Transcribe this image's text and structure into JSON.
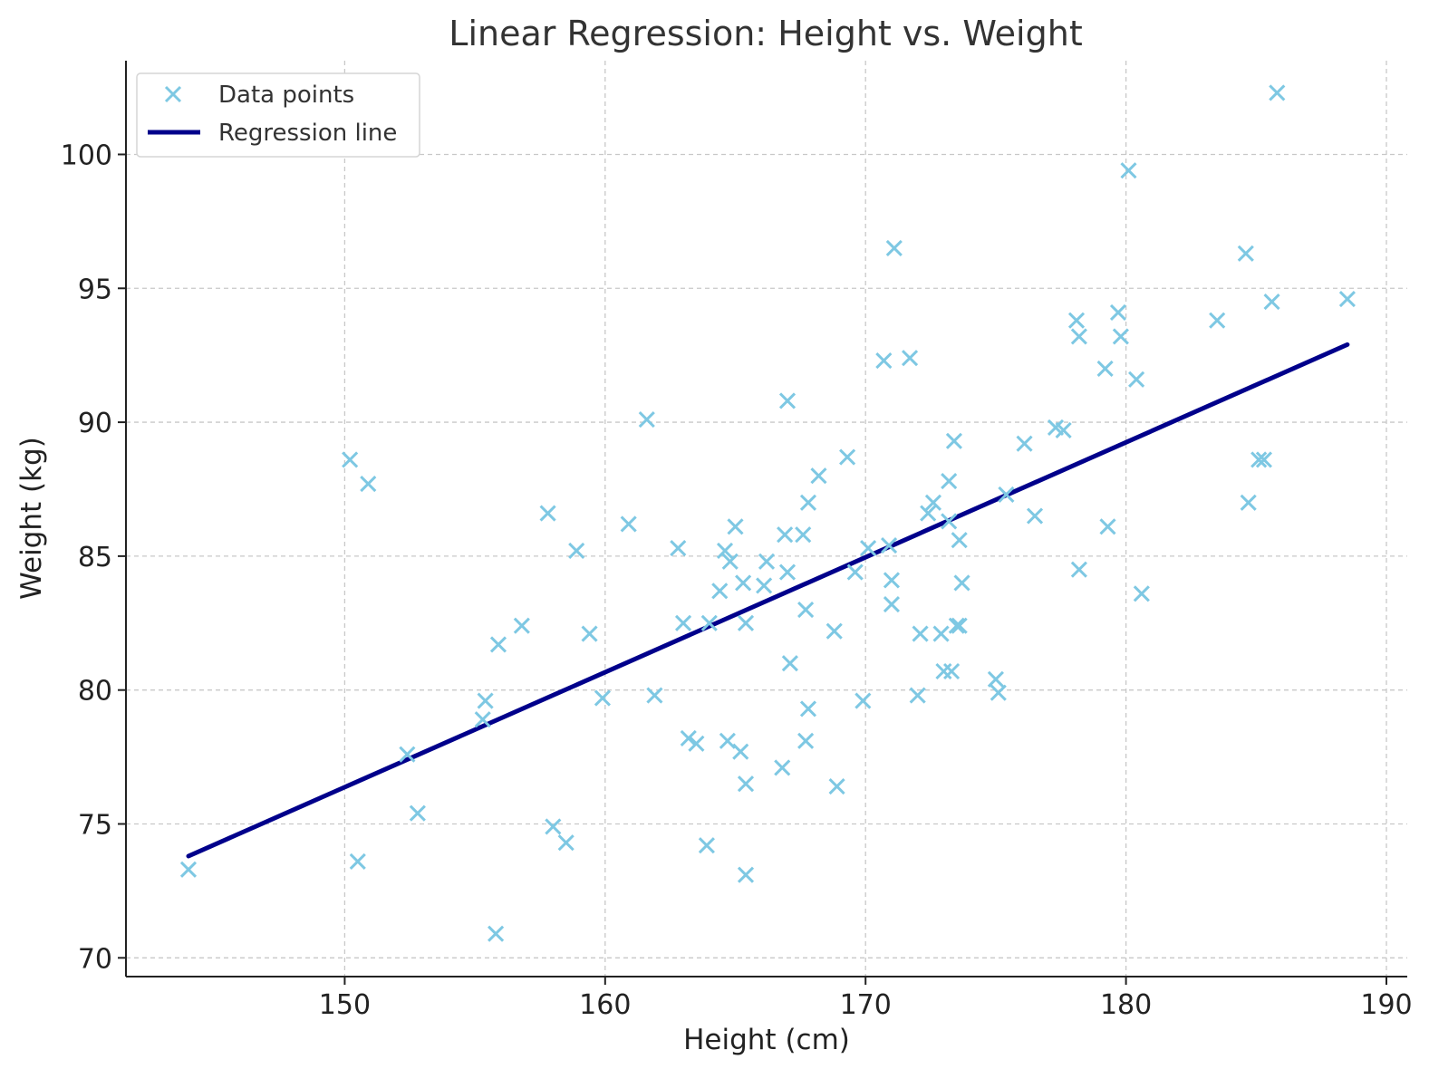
{
  "chart_data": {
    "type": "scatter",
    "title": "Linear Regression: Height vs. Weight",
    "xlabel": "Height (cm)",
    "ylabel": "Weight (kg)",
    "xlim": [
      141.6,
      190.8
    ],
    "ylim": [
      69.3,
      103.5
    ],
    "xticks": [
      150,
      160,
      170,
      180,
      190
    ],
    "yticks": [
      70,
      75,
      80,
      85,
      90,
      95,
      100
    ],
    "grid": true,
    "legend_position": "top-left",
    "legend": {
      "points_label": "Data points",
      "line_label": "Regression line"
    },
    "colors": {
      "points": "#7ec8e3",
      "line": "#00008b",
      "grid": "#c8c8c8",
      "axis": "#222222"
    },
    "series": [
      {
        "name": "Data points",
        "kind": "scatter",
        "marker": "x",
        "points": [
          [
            144.0,
            73.3
          ],
          [
            150.2,
            88.6
          ],
          [
            150.5,
            73.6
          ],
          [
            150.9,
            87.7
          ],
          [
            152.4,
            77.6
          ],
          [
            152.8,
            75.4
          ],
          [
            155.3,
            78.9
          ],
          [
            155.4,
            79.6
          ],
          [
            155.8,
            70.9
          ],
          [
            155.9,
            81.7
          ],
          [
            156.8,
            82.4
          ],
          [
            157.8,
            86.6
          ],
          [
            158.0,
            74.9
          ],
          [
            158.5,
            74.3
          ],
          [
            158.9,
            85.2
          ],
          [
            159.4,
            82.1
          ],
          [
            159.9,
            79.7
          ],
          [
            160.9,
            86.2
          ],
          [
            161.6,
            90.1
          ],
          [
            161.9,
            79.8
          ],
          [
            162.8,
            85.3
          ],
          [
            163.0,
            82.5
          ],
          [
            163.2,
            78.2
          ],
          [
            163.5,
            78.0
          ],
          [
            163.9,
            74.2
          ],
          [
            164.0,
            82.5
          ],
          [
            164.4,
            83.7
          ],
          [
            164.6,
            85.2
          ],
          [
            164.7,
            78.1
          ],
          [
            164.8,
            84.8
          ],
          [
            165.0,
            86.1
          ],
          [
            165.2,
            77.7
          ],
          [
            165.3,
            84.0
          ],
          [
            165.4,
            82.5
          ],
          [
            165.4,
            73.1
          ],
          [
            165.4,
            76.5
          ],
          [
            166.1,
            83.9
          ],
          [
            166.2,
            84.8
          ],
          [
            166.8,
            77.1
          ],
          [
            166.9,
            85.8
          ],
          [
            167.0,
            84.4
          ],
          [
            167.0,
            90.8
          ],
          [
            167.1,
            81.0
          ],
          [
            167.6,
            85.8
          ],
          [
            167.7,
            83.0
          ],
          [
            167.7,
            78.1
          ],
          [
            167.8,
            79.3
          ],
          [
            167.8,
            87.0
          ],
          [
            168.2,
            88.0
          ],
          [
            168.8,
            82.2
          ],
          [
            168.9,
            76.4
          ],
          [
            169.3,
            88.7
          ],
          [
            169.6,
            84.4
          ],
          [
            169.9,
            79.6
          ],
          [
            170.1,
            85.3
          ],
          [
            170.7,
            92.3
          ],
          [
            170.9,
            85.4
          ],
          [
            171.0,
            84.1
          ],
          [
            171.0,
            83.2
          ],
          [
            171.1,
            96.5
          ],
          [
            171.7,
            92.4
          ],
          [
            172.0,
            79.8
          ],
          [
            172.1,
            82.1
          ],
          [
            172.4,
            86.6
          ],
          [
            172.6,
            87.0
          ],
          [
            172.9,
            82.1
          ],
          [
            173.0,
            80.7
          ],
          [
            173.2,
            86.3
          ],
          [
            173.2,
            87.8
          ],
          [
            173.3,
            80.7
          ],
          [
            173.4,
            89.3
          ],
          [
            173.5,
            82.4
          ],
          [
            173.6,
            85.6
          ],
          [
            173.6,
            82.4
          ],
          [
            173.7,
            84.0
          ],
          [
            175.0,
            80.4
          ],
          [
            175.1,
            79.9
          ],
          [
            175.4,
            87.3
          ],
          [
            176.1,
            89.2
          ],
          [
            176.5,
            86.5
          ],
          [
            177.3,
            89.8
          ],
          [
            177.6,
            89.7
          ],
          [
            178.1,
            93.8
          ],
          [
            178.2,
            93.2
          ],
          [
            178.2,
            84.5
          ],
          [
            179.2,
            92.0
          ],
          [
            179.3,
            86.1
          ],
          [
            179.7,
            94.1
          ],
          [
            179.8,
            93.2
          ],
          [
            180.1,
            99.4
          ],
          [
            180.4,
            91.6
          ],
          [
            180.6,
            83.6
          ],
          [
            183.5,
            93.8
          ],
          [
            184.6,
            96.3
          ],
          [
            184.7,
            87.0
          ],
          [
            185.1,
            88.6
          ],
          [
            185.3,
            88.6
          ],
          [
            185.6,
            94.5
          ],
          [
            185.8,
            102.3
          ],
          [
            188.5,
            94.6
          ]
        ]
      },
      {
        "name": "Regression line",
        "kind": "line",
        "points": [
          [
            144.0,
            73.8
          ],
          [
            188.5,
            92.9
          ]
        ]
      }
    ]
  }
}
